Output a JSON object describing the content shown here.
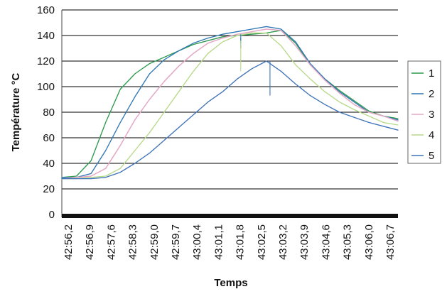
{
  "chart_data": {
    "type": "line",
    "xlabel": "Temps",
    "ylabel": "Température °C",
    "ylim": [
      0,
      160
    ],
    "yticks": [
      "0",
      "20",
      "40",
      "60",
      "80",
      "100",
      "120",
      "140",
      "160"
    ],
    "x_ticks": [
      "42:56,2",
      "42:56,9",
      "42:57,6",
      "42:58,3",
      "42:59,0",
      "42:59,7",
      "43:00,4",
      "43:01,1",
      "43:01,8",
      "43:02,5",
      "43:03,2",
      "43:03,9",
      "43:04,6",
      "43:05,3",
      "43:06,0",
      "43:06,7"
    ],
    "grid": "horizontal",
    "legend_position": "right",
    "series": [
      {
        "name": "1",
        "color": "#2e9a4e",
        "values": [
          29,
          30,
          42,
          72,
          98,
          110,
          118,
          123,
          128,
          133,
          136,
          139,
          140,
          141,
          142,
          144,
          134,
          117,
          106,
          97,
          89,
          81,
          77,
          75
        ]
      },
      {
        "name": "2",
        "color": "#2f77b4",
        "values": [
          29,
          29,
          32,
          50,
          72,
          92,
          110,
          121,
          128,
          134,
          138,
          141,
          143,
          145,
          147,
          145,
          135,
          118,
          106,
          96,
          88,
          80,
          77,
          74
        ]
      },
      {
        "name": "3",
        "color": "#e4a8c4",
        "values": [
          28,
          29,
          30,
          36,
          54,
          74,
          90,
          104,
          116,
          126,
          134,
          138,
          141,
          143,
          145,
          144,
          132,
          117,
          105,
          95,
          86,
          80,
          77,
          73
        ]
      },
      {
        "name": "4",
        "color": "#b8d98a",
        "values": [
          28,
          28,
          29,
          30,
          36,
          50,
          64,
          80,
          96,
          112,
          126,
          135,
          140,
          142,
          142,
          132,
          117,
          106,
          96,
          88,
          82,
          77,
          72,
          70
        ]
      },
      {
        "name": "5",
        "color": "#3f73b8",
        "values": [
          28,
          28,
          28,
          29,
          33,
          40,
          48,
          58,
          68,
          78,
          88,
          96,
          106,
          114,
          120,
          112,
          102,
          93,
          86,
          80,
          76,
          72,
          69,
          66
        ]
      }
    ]
  }
}
